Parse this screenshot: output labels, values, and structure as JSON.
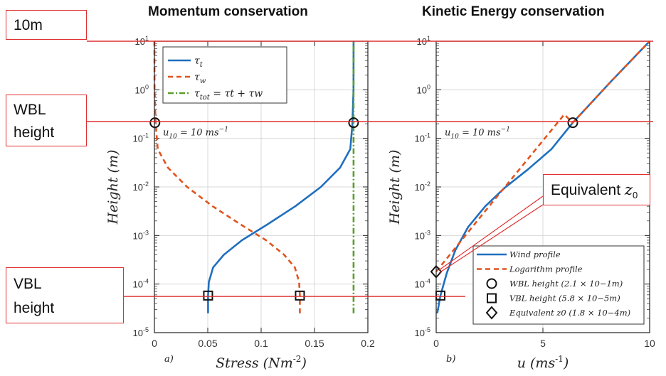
{
  "callouts": {
    "ten_m": "10m",
    "wbl_line1": "WBL",
    "wbl_line2": "height",
    "vbl_line1": "VBL",
    "vbl_line2": "height",
    "equiv_text": "Equivalent",
    "equiv_sym": "z",
    "equiv_sub": "0"
  },
  "colors": {
    "blue": "#1f6fbf",
    "orange": "#e0541e",
    "green": "#5aa02c",
    "red_line": "#e03030"
  },
  "chart_data": [
    {
      "type": "line",
      "title": "Momentum conservation",
      "panel_label": "a)",
      "xlabel_text": "Stress",
      "xlabel_unit": "(Nm",
      "xlabel_exp": "-2",
      "xlabel_close": ")",
      "ylabel": "Height (m)",
      "yscale": "log",
      "xlim": [
        0,
        0.2
      ],
      "ylim": [
        1e-05,
        10
      ],
      "xticks": [
        0,
        0.05,
        0.1,
        0.15,
        0.2
      ],
      "xtick_labels": [
        "0",
        "0.05",
        "0.1",
        "0.15",
        "0.2"
      ],
      "yticks": [
        1e-05,
        0.0001,
        0.001,
        0.01,
        0.1,
        1,
        10
      ],
      "ytick_labels": [
        [
          "10",
          "-5"
        ],
        [
          "10",
          "-4"
        ],
        [
          "10",
          "-3"
        ],
        [
          "10",
          "-2"
        ],
        [
          "10",
          "-1"
        ],
        [
          "10",
          "0"
        ],
        [
          "10",
          "1"
        ]
      ],
      "grid": true,
      "annotation": "u10 = 10 ms-1",
      "annotation_parts": [
        "u",
        "10",
        " = 10 ms",
        "−1"
      ],
      "legend_position": "top-right",
      "series": [
        {
          "name": "τt",
          "legend_sym": "τ",
          "legend_sub": "t",
          "legend_rest": "",
          "color": "#1f6fbf",
          "dash": "",
          "x": [
            0.0503,
            0.0503,
            0.051,
            0.055,
            0.065,
            0.082,
            0.106,
            0.132,
            0.156,
            0.174,
            0.1835,
            0.1855,
            0.1865,
            0.1866
          ],
          "y": [
            2.5e-05,
            5.8e-05,
            0.00011,
            0.00022,
            0.0004,
            0.0008,
            0.0017,
            0.004,
            0.01,
            0.025,
            0.06,
            0.2,
            1,
            10
          ]
        },
        {
          "name": "τw",
          "legend_sym": "τ",
          "legend_sub": "w",
          "legend_rest": "",
          "color": "#e0541e",
          "dash": "7,5",
          "x": [
            0.1363,
            0.1363,
            0.1356,
            0.1316,
            0.1216,
            0.1046,
            0.0806,
            0.0546,
            0.0306,
            0.0126,
            0.0031,
            0.0011,
            0.0001,
            0
          ],
          "y": [
            2.5e-05,
            5.8e-05,
            0.00011,
            0.00022,
            0.0004,
            0.0008,
            0.0017,
            0.004,
            0.01,
            0.025,
            0.06,
            0.2,
            1,
            10
          ]
        },
        {
          "name": "τtot = τt + τw",
          "legend_sym": "τ",
          "legend_sub": "tot",
          "legend_rest": " = τt + τw",
          "color": "#5aa02c",
          "dash": "8,3,2,3",
          "x": [
            0.1866,
            0.1866
          ],
          "y": [
            2.5e-05,
            10
          ]
        }
      ],
      "markers": [
        {
          "shape": "circle",
          "x": 0.0005,
          "y": 0.21
        },
        {
          "shape": "circle",
          "x": 0.1866,
          "y": 0.21
        },
        {
          "shape": "square",
          "x": 0.0503,
          "y": 5.8e-05
        },
        {
          "shape": "square",
          "x": 0.1363,
          "y": 5.8e-05
        }
      ]
    },
    {
      "type": "line",
      "title": "Kinetic Energy conservation",
      "panel_label": "b)",
      "xlabel_text": "u",
      "xlabel_unit": "(ms",
      "xlabel_exp": "-1",
      "xlabel_close": ")",
      "ylabel": "Height (m)",
      "yscale": "log",
      "xlim": [
        0,
        10
      ],
      "ylim": [
        1e-05,
        10
      ],
      "xticks": [
        0,
        5,
        10
      ],
      "xtick_labels": [
        "0",
        "5",
        "10"
      ],
      "yticks": [
        1e-05,
        0.0001,
        0.001,
        0.01,
        0.1,
        1,
        10
      ],
      "ytick_labels": [
        [
          "10",
          "-5"
        ],
        [
          "10",
          "-4"
        ],
        [
          "10",
          "-3"
        ],
        [
          "10",
          "-2"
        ],
        [
          "10",
          "-1"
        ],
        [
          "10",
          "0"
        ],
        [
          "10",
          "1"
        ]
      ],
      "grid": true,
      "annotation": "u10 = 10 ms-1",
      "annotation_parts": [
        "u",
        "10",
        " = 10 ms",
        "−1"
      ],
      "legend_position": "bottom-right",
      "series": [
        {
          "name": "Wind profile",
          "color": "#1f6fbf",
          "dash": "",
          "x": [
            0.05,
            0.2,
            0.5,
            0.9,
            1.5,
            2.3,
            3.2,
            4.3,
            5.4,
            6.4,
            8.2,
            10.0
          ],
          "y": [
            2.5e-05,
            5.8e-05,
            0.00017,
            0.0005,
            0.0015,
            0.004,
            0.0095,
            0.023,
            0.06,
            0.21,
            1.5,
            10
          ]
        },
        {
          "name": "Logarithm profile",
          "color": "#e0541e",
          "dash": "7,5",
          "x": [
            0.0,
            1.0,
            2.0,
            3.0,
            4.0,
            5.0,
            6.0,
            6.4,
            8.2,
            10.0
          ],
          "y": [
            0.00018,
            0.00063,
            0.0022,
            0.0076,
            0.026,
            0.09,
            0.31,
            0.21,
            1.5,
            10
          ]
        }
      ],
      "markers": [
        {
          "shape": "circle",
          "x": 6.4,
          "y": 0.21
        },
        {
          "shape": "square",
          "x": 0.2,
          "y": 5.8e-05
        },
        {
          "shape": "diamond",
          "x": 0.0,
          "y": 0.00018
        }
      ],
      "legend_entries": [
        {
          "kind": "line",
          "color": "#1f6fbf",
          "dash": "",
          "text": "Wind profile"
        },
        {
          "kind": "line",
          "color": "#e0541e",
          "dash": "7,5",
          "text": "Logarithm profile"
        },
        {
          "kind": "circle",
          "text": "WBL height (2.1 × 10−1m)"
        },
        {
          "kind": "square",
          "text": "VBL height (5.8 × 10−5m)"
        },
        {
          "kind": "diamond",
          "text": "Equivalent z0 (1.8 × 10−4m)"
        }
      ]
    }
  ]
}
